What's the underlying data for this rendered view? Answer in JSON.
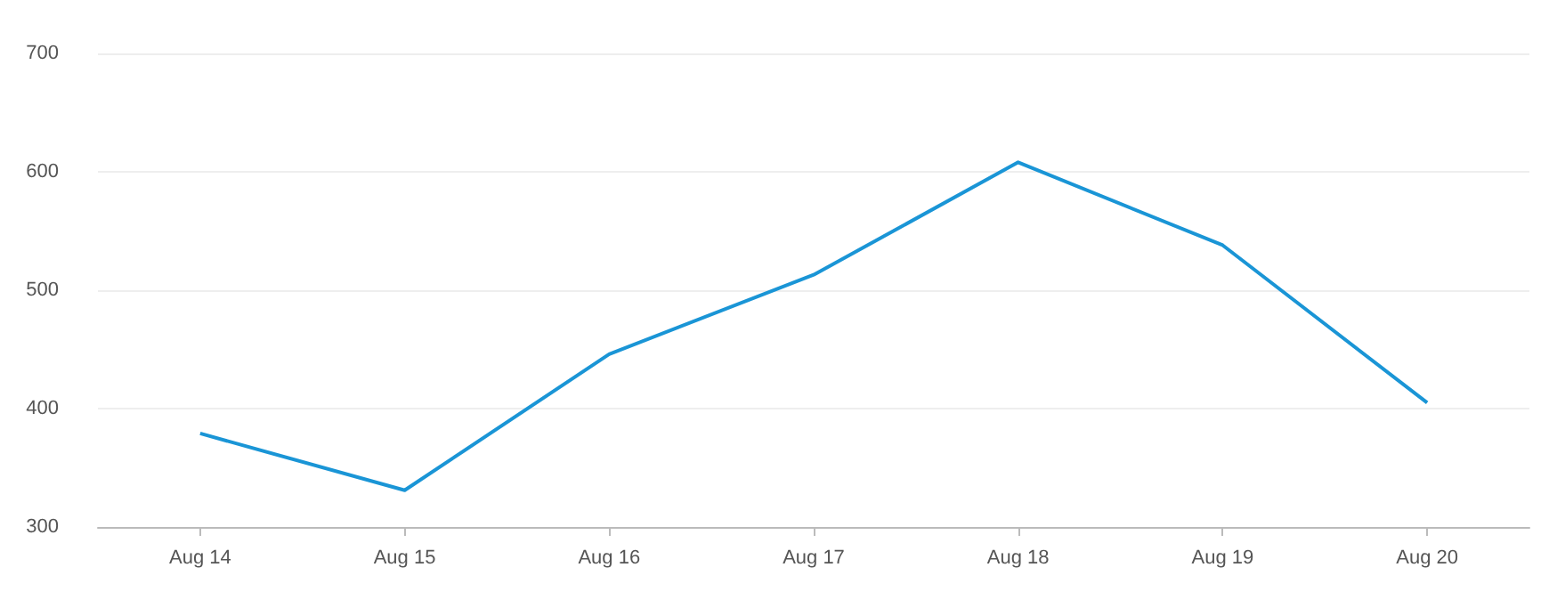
{
  "chart_data": {
    "type": "line",
    "categories": [
      "Aug 14",
      "Aug 15",
      "Aug 16",
      "Aug 17",
      "Aug 18",
      "Aug 19",
      "Aug 20"
    ],
    "series": [
      {
        "color": "#1a95d6",
        "values": [
          379,
          331,
          446,
          513,
          608,
          538,
          405
        ]
      }
    ],
    "ylim": [
      300,
      700
    ],
    "yticks": [
      300,
      400,
      500,
      600,
      700
    ],
    "grid": "y",
    "marker": "none",
    "line_style": "solid"
  }
}
